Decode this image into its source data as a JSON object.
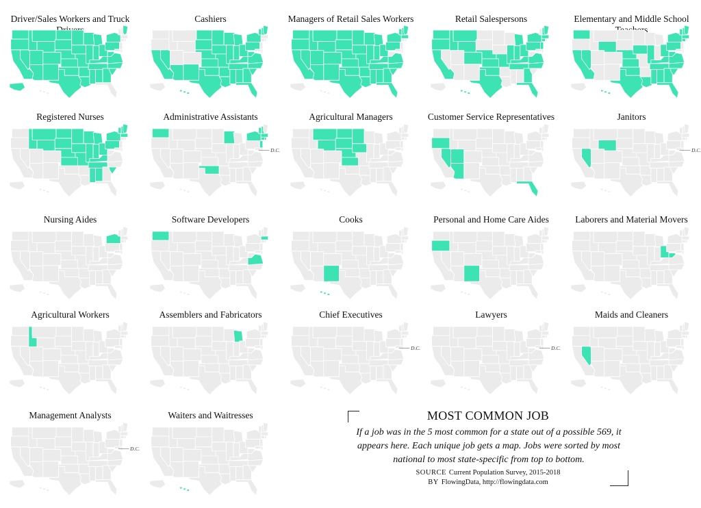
{
  "legend": {
    "title": "MOST COMMON JOB",
    "description": "If a job was in the 5 most common for a state out of a possible 569, it appears here. Each unique job gets a map. Jobs were sorted by most national to most state-specific from top to bottom.",
    "source_label": "SOURCE",
    "source_text": "Current Population Survey, 2015-2018",
    "by_label": "BY",
    "by_text": "FlowingData, http://flowingdata.com"
  },
  "colors": {
    "highlight": "#3de3b2",
    "base": "#ebebeb",
    "border": "#ffffff"
  },
  "dc_label": "D.C.",
  "maps": [
    {
      "title": "Driver/Sales Workers and Truck Drivers",
      "states": [
        "WA",
        "OR",
        "CA",
        "NV",
        "ID",
        "MT",
        "WY",
        "UT",
        "CO",
        "AZ",
        "NM",
        "ND",
        "SD",
        "NE",
        "KS",
        "OK",
        "TX",
        "MN",
        "IA",
        "MO",
        "AR",
        "LA",
        "WI",
        "IL",
        "IN",
        "MI",
        "OH",
        "KY",
        "TN",
        "MS",
        "AL",
        "GA",
        "SC",
        "NC",
        "VA",
        "WV",
        "PA",
        "NY",
        "ME",
        "AK"
      ],
      "dc": false
    },
    {
      "title": "Cashiers",
      "states": [
        "CA",
        "NV",
        "AZ",
        "NM",
        "TX",
        "OK",
        "KS",
        "NE",
        "SD",
        "ND",
        "MN",
        "IA",
        "MO",
        "AR",
        "LA",
        "MS",
        "AL",
        "GA",
        "FL",
        "SC",
        "NC",
        "TN",
        "KY",
        "IN",
        "IL",
        "WI",
        "MI",
        "OH",
        "WV",
        "VA",
        "PA",
        "NY",
        "ME",
        "NH",
        "VT",
        "HI"
      ],
      "dc": false
    },
    {
      "title": "Managers of Retail Sales Workers",
      "states": [
        "WA",
        "OR",
        "CA",
        "NV",
        "ID",
        "MT",
        "WY",
        "UT",
        "CO",
        "AZ",
        "NM",
        "ND",
        "SD",
        "NE",
        "KS",
        "OK",
        "TX",
        "MN",
        "IA",
        "MO",
        "AR",
        "LA",
        "WI",
        "IL",
        "IN",
        "MI",
        "OH",
        "KY",
        "TN",
        "MS",
        "AL",
        "GA",
        "FL",
        "SC",
        "NC",
        "VA",
        "PA",
        "NY",
        "VT",
        "NH",
        "ME",
        "MA"
      ],
      "dc": false
    },
    {
      "title": "Retail Salespersons",
      "states": [
        "WA",
        "OR",
        "CA",
        "ID",
        "MT",
        "WY",
        "CO",
        "NE",
        "KS",
        "TX",
        "OK",
        "MO",
        "IL",
        "IN",
        "OH",
        "MI",
        "KY",
        "TN",
        "FL",
        "GA",
        "NC",
        "VA",
        "PA",
        "NY",
        "NJ",
        "CT",
        "MA",
        "NH",
        "ME",
        "HI"
      ],
      "dc": false
    },
    {
      "title": "Elementary and Middle School Teachers",
      "states": [
        "WA",
        "CA",
        "NV",
        "WY",
        "NE",
        "IA",
        "IL",
        "OH",
        "KS",
        "OK",
        "TX",
        "LA",
        "MS",
        "AL",
        "GA",
        "FL",
        "SC",
        "NC",
        "TN",
        "KY",
        "VA",
        "WV",
        "PA",
        "NY",
        "ME",
        "VT",
        "NH",
        "MA",
        "CT",
        "HI"
      ],
      "dc": false
    },
    {
      "title": "Registered Nurses",
      "states": [
        "ID",
        "MT",
        "WY",
        "ND",
        "SD",
        "NE",
        "KS",
        "MN",
        "IA",
        "MO",
        "WI",
        "IL",
        "IN",
        "MI",
        "OH",
        "KY",
        "TN",
        "MS",
        "AL",
        "SC",
        "PA",
        "NY",
        "ME",
        "NH",
        "VT",
        "MA"
      ],
      "dc": false
    },
    {
      "title": "Administrative Assistants",
      "states": [
        "WA",
        "WI",
        "OK",
        "NY",
        "VT",
        "NH",
        "MA",
        "CT",
        "RI",
        "NJ"
      ],
      "dc": true
    },
    {
      "title": "Agricultural Managers",
      "states": [
        "MT",
        "ND",
        "SD",
        "WY",
        "NE",
        "KS",
        "MN",
        "IA"
      ],
      "dc": false
    },
    {
      "title": "Customer Service Representatives",
      "states": [
        "OR",
        "NV",
        "UT",
        "AZ",
        "FL"
      ],
      "dc": false
    },
    {
      "title": "Janitors",
      "states": [
        "NV",
        "WY"
      ],
      "dc": true
    },
    {
      "title": "Nursing Aides",
      "states": [
        "NY"
      ],
      "dc": false
    },
    {
      "title": "Software Developers",
      "states": [
        "WA",
        "VA",
        "MA"
      ],
      "dc": false
    },
    {
      "title": "Cooks",
      "states": [
        "NM",
        "HI"
      ],
      "dc": false
    },
    {
      "title": "Personal and Home Care Aides",
      "states": [
        "OR",
        "NM"
      ],
      "dc": false
    },
    {
      "title": "Laborers and Material Movers",
      "states": [
        "OH",
        "WV"
      ],
      "dc": false
    },
    {
      "title": "Agricultural Workers",
      "states": [
        "ID"
      ],
      "dc": false
    },
    {
      "title": "Assemblers and Fabricators",
      "states": [
        "MI"
      ],
      "dc": false
    },
    {
      "title": "Chief Executives",
      "states": [],
      "dc": true
    },
    {
      "title": "Lawyers",
      "states": [],
      "dc": true
    },
    {
      "title": "Maids and Cleaners",
      "states": [
        "NV"
      ],
      "dc": false
    },
    {
      "title": "Management Analysts",
      "states": [],
      "dc": true
    },
    {
      "title": "Waiters and Waitresses",
      "states": [
        "HI"
      ],
      "dc": false
    }
  ]
}
